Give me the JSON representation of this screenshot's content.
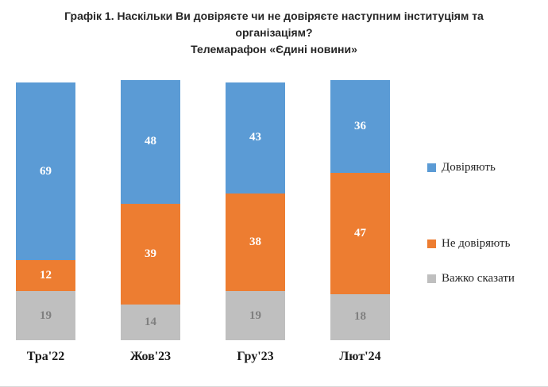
{
  "chart_data": {
    "type": "bar",
    "stacked": true,
    "title": "Графік 1. Наскільки Ви довіряєте чи не довіряєте наступним інституціям та організаціям?",
    "subtitle": "Телемарафон «Єдині новини»",
    "categories": [
      "Тра'22",
      "Жов'23",
      "Гру'23",
      "Лют'24"
    ],
    "series": [
      {
        "name": "Довіряють",
        "color": "#5B9BD5",
        "label_color": "#FFFFFF",
        "values": [
          69,
          48,
          43,
          36
        ]
      },
      {
        "name": "Не довіряють",
        "color": "#ED7D31",
        "label_color": "#FFFFFF",
        "values": [
          12,
          39,
          38,
          47
        ]
      },
      {
        "name": "Важко сказати",
        "color": "#BFBFBF",
        "label_color": "#7F7F7F",
        "values": [
          19,
          14,
          19,
          18
        ]
      }
    ],
    "legend_position": "right",
    "ylim": [
      0,
      101
    ],
    "grid": false
  }
}
